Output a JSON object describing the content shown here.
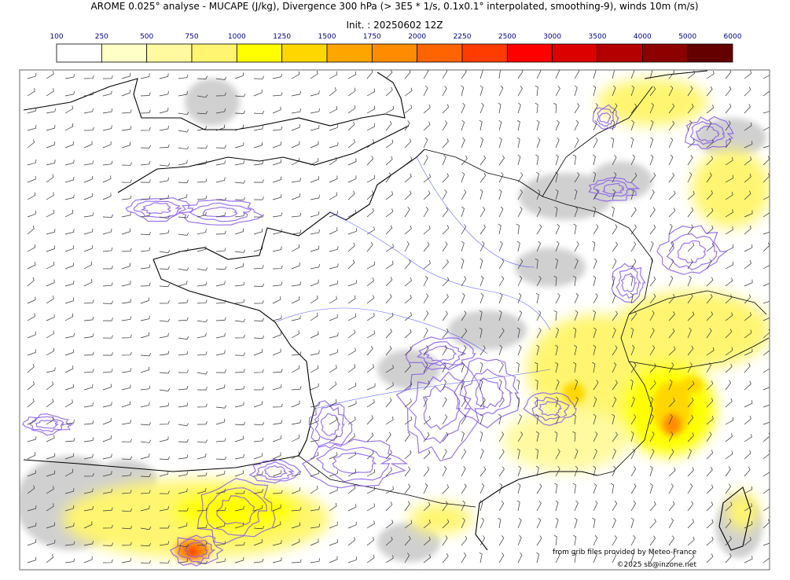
{
  "header": {
    "title": "AROME 0.025° analyse - MUCAPE (J/kg), Divergence 300 hPa (> 3E5 * 1/s, 0.1x0.1° interpolated, smoothing-9), winds 10m (m/s)",
    "init": "Init. : 20250602 12Z"
  },
  "colorbar": {
    "ticks": [
      100,
      250,
      500,
      750,
      1000,
      1250,
      1500,
      1750,
      2000,
      2250,
      2500,
      3000,
      3500,
      4000,
      5000,
      6000
    ],
    "colors": [
      "#ffffff",
      "#ffffc8",
      "#fffaa0",
      "#fff570",
      "#ffff00",
      "#ffd700",
      "#ffa500",
      "#ff8c00",
      "#ff6400",
      "#ff3c00",
      "#ff0000",
      "#dc0000",
      "#b40000",
      "#8c0000",
      "#640000"
    ]
  },
  "credits": [
    "from grib files provided by Meteo-France",
    "©2025 sb@inzone.net"
  ]
}
